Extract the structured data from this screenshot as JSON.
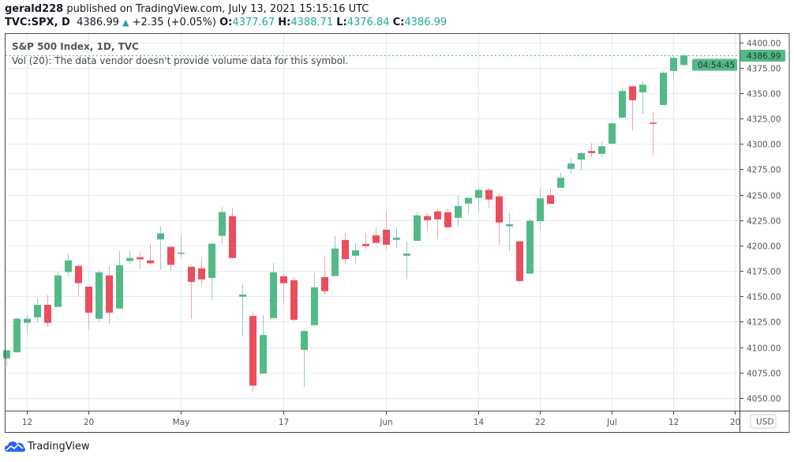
{
  "header": {
    "author": "gerald228",
    "published": "published on TradingView.com, July 13, 2021 15:15:16 UTC",
    "symbol": "TVC:SPX, D",
    "last": "4386.99",
    "change": "+2.35 (+0.05%)",
    "o_label": "O:",
    "o": "4377.67",
    "h_label": "H:",
    "h": "4388.71",
    "l_label": "L:",
    "l": "4376.84",
    "c_label": "C:",
    "c": "4386.99",
    "direction_icon": "triangle-up-icon"
  },
  "legend": {
    "title": "S&P 500 Index, 1D, TVC",
    "volume_note": "Vol (20): The data vendor doesn't provide volume data for this symbol."
  },
  "price_axis": {
    "currency": "USD",
    "last_price_label": "4386.99",
    "countdown": "04:54:45"
  },
  "logo": {
    "text": "TradingView"
  },
  "colors": {
    "up": "#53b987",
    "down": "#eb4d5c",
    "up_wick": "#9ccac7",
    "down_wick": "#f3a3ab",
    "grid": "#e1ecf2",
    "last_price": "#53b987"
  },
  "chart_data": {
    "type": "candlestick",
    "title": "S&P 500 Index, 1D, TVC",
    "ylim": [
      4040,
      4410
    ],
    "yticks": [
      4050,
      4075,
      4100,
      4125,
      4150,
      4175,
      4200,
      4225,
      4250,
      4275,
      4300,
      4325,
      4350,
      4375,
      4400
    ],
    "ytick_labels": [
      "4050.00",
      "4075.00",
      "4100.00",
      "4125.00",
      "4150.00",
      "4175.00",
      "4200.00",
      "4225.00",
      "4250.00",
      "4275.00",
      "4300.00",
      "4325.00",
      "4350.00",
      "4375.00",
      "4400.00"
    ],
    "xticks": [
      {
        "label": "12",
        "date": "2021-04-12"
      },
      {
        "label": "20",
        "date": "2021-04-20"
      },
      {
        "label": "May",
        "date": "2021-05-03"
      },
      {
        "label": "17",
        "date": "2021-05-17"
      },
      {
        "label": "Jun",
        "date": "2021-06-01"
      },
      {
        "label": "14",
        "date": "2021-06-14"
      },
      {
        "label": "22",
        "date": "2021-06-22"
      },
      {
        "label": "Jul",
        "date": "2021-07-01"
      },
      {
        "label": "12",
        "date": "2021-07-12"
      },
      {
        "label": "20",
        "date": "2021-07-20"
      }
    ],
    "grid": true,
    "candles_columns": [
      "date",
      "open",
      "high",
      "low",
      "close"
    ],
    "candles": [
      [
        "2021-04-08",
        4089,
        4097,
        4082,
        4097
      ],
      [
        "2021-04-09",
        4095,
        4129,
        4095,
        4128
      ],
      [
        "2021-04-12",
        4124,
        4131.5,
        4113.5,
        4128
      ],
      [
        "2021-04-13",
        4129.4,
        4148,
        4124,
        4141.7
      ],
      [
        "2021-04-14",
        4141.7,
        4151.8,
        4120,
        4124
      ],
      [
        "2021-04-15",
        4139.6,
        4173.7,
        4139.6,
        4170.6
      ],
      [
        "2021-04-16",
        4174,
        4191.7,
        4170,
        4185.4
      ],
      [
        "2021-04-19",
        4180,
        4181,
        4150,
        4163
      ],
      [
        "2021-04-20",
        4159.6,
        4159.6,
        4117.7,
        4134
      ],
      [
        "2021-04-21",
        4127.9,
        4175.3,
        4125.5,
        4173.7
      ],
      [
        "2021-04-22",
        4170.6,
        4180,
        4123,
        4134
      ],
      [
        "2021-04-23",
        4138,
        4194.8,
        4138,
        4180.7
      ],
      [
        "2021-04-26",
        4184.9,
        4194.8,
        4181.8,
        4187.7
      ],
      [
        "2021-04-27",
        4188.5,
        4194,
        4176.3,
        4186.5
      ],
      [
        "2021-04-28",
        4185.4,
        4201.8,
        4181.8,
        4182.6
      ],
      [
        "2021-04-29",
        4206,
        4219,
        4176.3,
        4212
      ],
      [
        "2021-04-30",
        4198.7,
        4198.7,
        4174.7,
        4181
      ],
      [
        "2021-05-03",
        4192,
        4209.6,
        4188,
        4193
      ],
      [
        "2021-05-04",
        4179.2,
        4179.2,
        4127.9,
        4164.3
      ],
      [
        "2021-05-05",
        4177.6,
        4187.8,
        4160.7,
        4166.7
      ],
      [
        "2021-05-06",
        4168.2,
        4203.4,
        4146.6,
        4201.8
      ],
      [
        "2021-05-07",
        4209.6,
        4238.5,
        4201,
        4233
      ],
      [
        "2021-05-10",
        4229,
        4237,
        4187.8,
        4187.8
      ],
      [
        "2021-05-11",
        4149.7,
        4162,
        4110.7,
        4151.8
      ],
      [
        "2021-05-12",
        4130.7,
        4134.6,
        4056,
        4062.2
      ],
      [
        "2021-05-13",
        4074,
        4131.5,
        4074,
        4112
      ],
      [
        "2021-05-14",
        4128.6,
        4183,
        4128.6,
        4173.7
      ],
      [
        "2021-05-17",
        4169.8,
        4172,
        4142,
        4163
      ],
      [
        "2021-05-18",
        4165.9,
        4169,
        4125.5,
        4127
      ],
      [
        "2021-05-19",
        4097.4,
        4116.7,
        4060.7,
        4115.9
      ],
      [
        "2021-05-20",
        4121.6,
        4172.9,
        4121.6,
        4158.9
      ],
      [
        "2021-05-21",
        4169,
        4189.3,
        4151.3,
        4155.2
      ],
      [
        "2021-05-24",
        4170,
        4209.6,
        4170,
        4197.1
      ],
      [
        "2021-05-25",
        4205.5,
        4212.5,
        4181.5,
        4186.7
      ],
      [
        "2021-05-26",
        4190,
        4202.3,
        4183,
        4195.3
      ],
      [
        "2021-05-27",
        4201.6,
        4212.5,
        4196.4,
        4199.5
      ],
      [
        "2021-05-28",
        4210,
        4218,
        4202.6,
        4202.6
      ],
      [
        "2021-06-01",
        4215.6,
        4233.6,
        4196.4,
        4200.8
      ],
      [
        "2021-06-02",
        4205.7,
        4217.2,
        4197.1,
        4207.8
      ],
      [
        "2021-06-03",
        4190,
        4203.9,
        4166.7,
        4192.2
      ],
      [
        "2021-06-04",
        4204.7,
        4232.8,
        4204.7,
        4229.7
      ],
      [
        "2021-06-07",
        4229,
        4232,
        4214,
        4225
      ],
      [
        "2021-06-08",
        4233.6,
        4236,
        4207,
        4225.8
      ],
      [
        "2021-06-09",
        4232.8,
        4236.7,
        4217.2,
        4218
      ],
      [
        "2021-06-10",
        4227.3,
        4249.2,
        4218.8,
        4239
      ],
      [
        "2021-06-11",
        4241.4,
        4247.7,
        4231,
        4246.9
      ],
      [
        "2021-06-14",
        4246.9,
        4256,
        4232.8,
        4254.7
      ],
      [
        "2021-06-15",
        4254.7,
        4257,
        4237.5,
        4245.3
      ],
      [
        "2021-06-16",
        4248.4,
        4251.6,
        4200.8,
        4222.7
      ],
      [
        "2021-06-17",
        4219,
        4232,
        4194.5,
        4221
      ],
      [
        "2021-06-18",
        4204.2,
        4204.2,
        4163,
        4165.1
      ],
      [
        "2021-06-21",
        4172.4,
        4226,
        4172.4,
        4224.5
      ],
      [
        "2021-06-22",
        4224,
        4255.7,
        4216,
        4246.4
      ],
      [
        "2021-06-23",
        4249.5,
        4256.5,
        4241.1,
        4241.1
      ],
      [
        "2021-06-24",
        4256.8,
        4271.4,
        4256.8,
        4266.7
      ],
      [
        "2021-06-25",
        4275.5,
        4286,
        4270.8,
        4280.7
      ],
      [
        "2021-06-28",
        4284.6,
        4292,
        4274,
        4291
      ],
      [
        "2021-06-29",
        4293,
        4300.8,
        4286.3,
        4291
      ],
      [
        "2021-06-30",
        4290.2,
        4302.3,
        4287,
        4297.7
      ],
      [
        "2021-07-01",
        4300.3,
        4320.7,
        4300.3,
        4320.2
      ],
      [
        "2021-07-02",
        4325.9,
        4355,
        4325.9,
        4352
      ],
      [
        "2021-07-06",
        4356.7,
        4356.7,
        4313.5,
        4343
      ],
      [
        "2021-07-07",
        4350.8,
        4362,
        4329,
        4358.3
      ],
      [
        "2021-07-08",
        4321,
        4331,
        4288.6,
        4320.5
      ],
      [
        "2021-07-09",
        4338.3,
        4371.5,
        4338.3,
        4370
      ],
      [
        "2021-07-12",
        4371.8,
        4387,
        4363,
        4384.7
      ],
      [
        "2021-07-13",
        4377.67,
        4388.71,
        4376.84,
        4386.99
      ]
    ]
  }
}
